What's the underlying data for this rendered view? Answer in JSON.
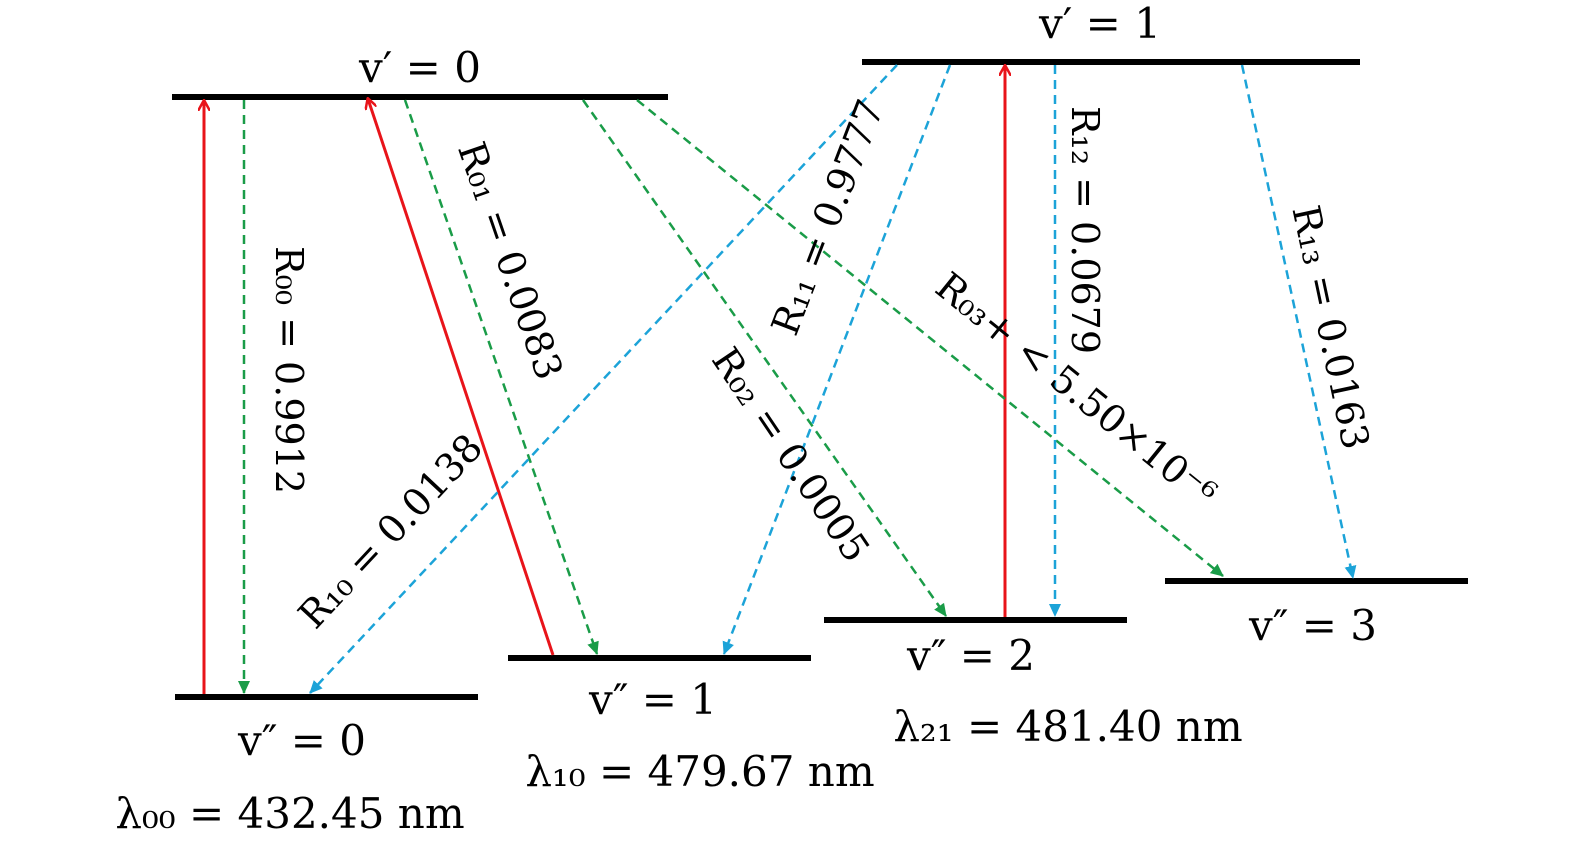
{
  "levels": {
    "upper_0": "v′ = 0",
    "upper_1": "v′ = 1",
    "lower_0": "v″ =  0",
    "lower_1": "v″ =  1",
    "lower_2": "v″ =  2",
    "lower_3": "v″ =  3"
  },
  "wavelengths": {
    "lambda_00": "λ₀₀ = 432.45 nm",
    "lambda_10": "λ₁₀ = 479.67 nm",
    "lambda_21": "λ₂₁ = 481.40 nm"
  },
  "ratios": {
    "R00": "R₀₀ = 0.9912",
    "R01": "R₀₁ = 0.0083",
    "R02": "R₀₂ = 0.0005",
    "R03": "R₀₃+ < 5.50×10⁻⁶",
    "R10": "R₁₀ = 0.0138",
    "R11": "R₁₁ = 0.9777",
    "R12": "R₁₂ = 0.0679",
    "R13": "R₁₃ = 0.0163"
  },
  "colors": {
    "level_line": "#000000",
    "pump_arrow": "#e8141a",
    "decay_from_v0": "#1a9c48",
    "decay_from_v1": "#1ca3d8"
  }
}
